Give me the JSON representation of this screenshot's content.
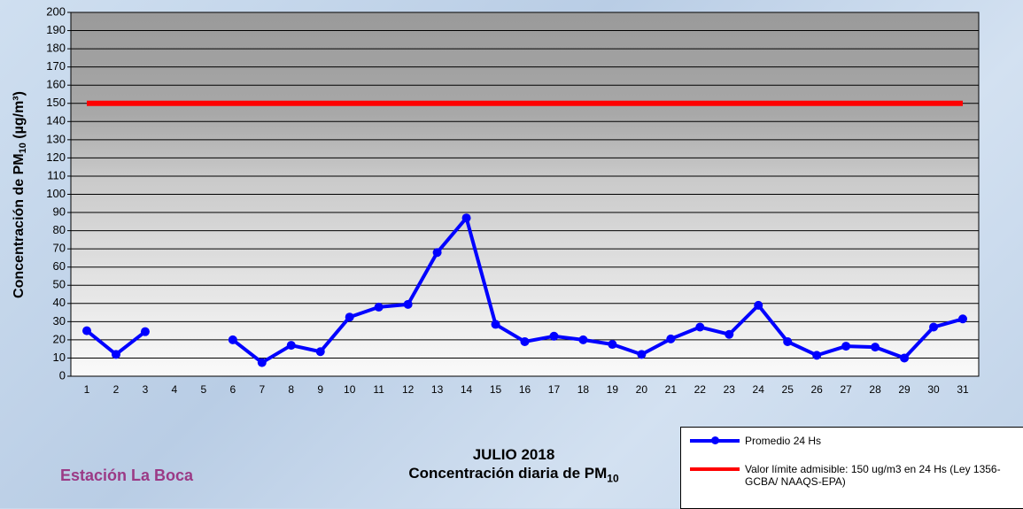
{
  "chart_data": {
    "type": "line",
    "title": "JULIO 2018",
    "subtitle": [
      "Concentración diaria de PM",
      "10"
    ],
    "ylabel": [
      "Concentración de PM",
      "10",
      " (µg/m³)"
    ],
    "station": "Estación La Boca",
    "categories": [
      "1",
      "2",
      "3",
      "4",
      "5",
      "6",
      "7",
      "8",
      "9",
      "10",
      "11",
      "12",
      "13",
      "14",
      "15",
      "16",
      "17",
      "18",
      "19",
      "20",
      "21",
      "22",
      "23",
      "24",
      "25",
      "26",
      "27",
      "28",
      "29",
      "30",
      "31"
    ],
    "series": [
      {
        "name": "Promedio 24 Hs",
        "color": "#0000ff",
        "marker": true,
        "values": [
          25,
          12,
          24.5,
          null,
          null,
          20,
          7.5,
          17,
          13.5,
          32.5,
          38,
          39.5,
          68,
          87,
          28.5,
          19,
          22,
          20,
          17.5,
          12,
          20.5,
          27,
          23,
          39,
          19,
          11.5,
          16.5,
          16,
          10,
          27,
          31.5
        ]
      },
      {
        "name": "Valor límite admisible: 150 ug/m3 en 24 Hs (Ley 1356-GCBA/ NAAQS-EPA)",
        "color": "#ff0000",
        "marker": false,
        "values": [
          150,
          150,
          150,
          150,
          150,
          150,
          150,
          150,
          150,
          150,
          150,
          150,
          150,
          150,
          150,
          150,
          150,
          150,
          150,
          150,
          150,
          150,
          150,
          150,
          150,
          150,
          150,
          150,
          150,
          150,
          150
        ]
      }
    ],
    "ylim": [
      0,
      200
    ],
    "yticks": [
      0,
      10,
      20,
      30,
      40,
      50,
      60,
      70,
      80,
      90,
      100,
      110,
      120,
      130,
      140,
      150,
      160,
      170,
      180,
      190,
      200
    ],
    "grid": true
  }
}
